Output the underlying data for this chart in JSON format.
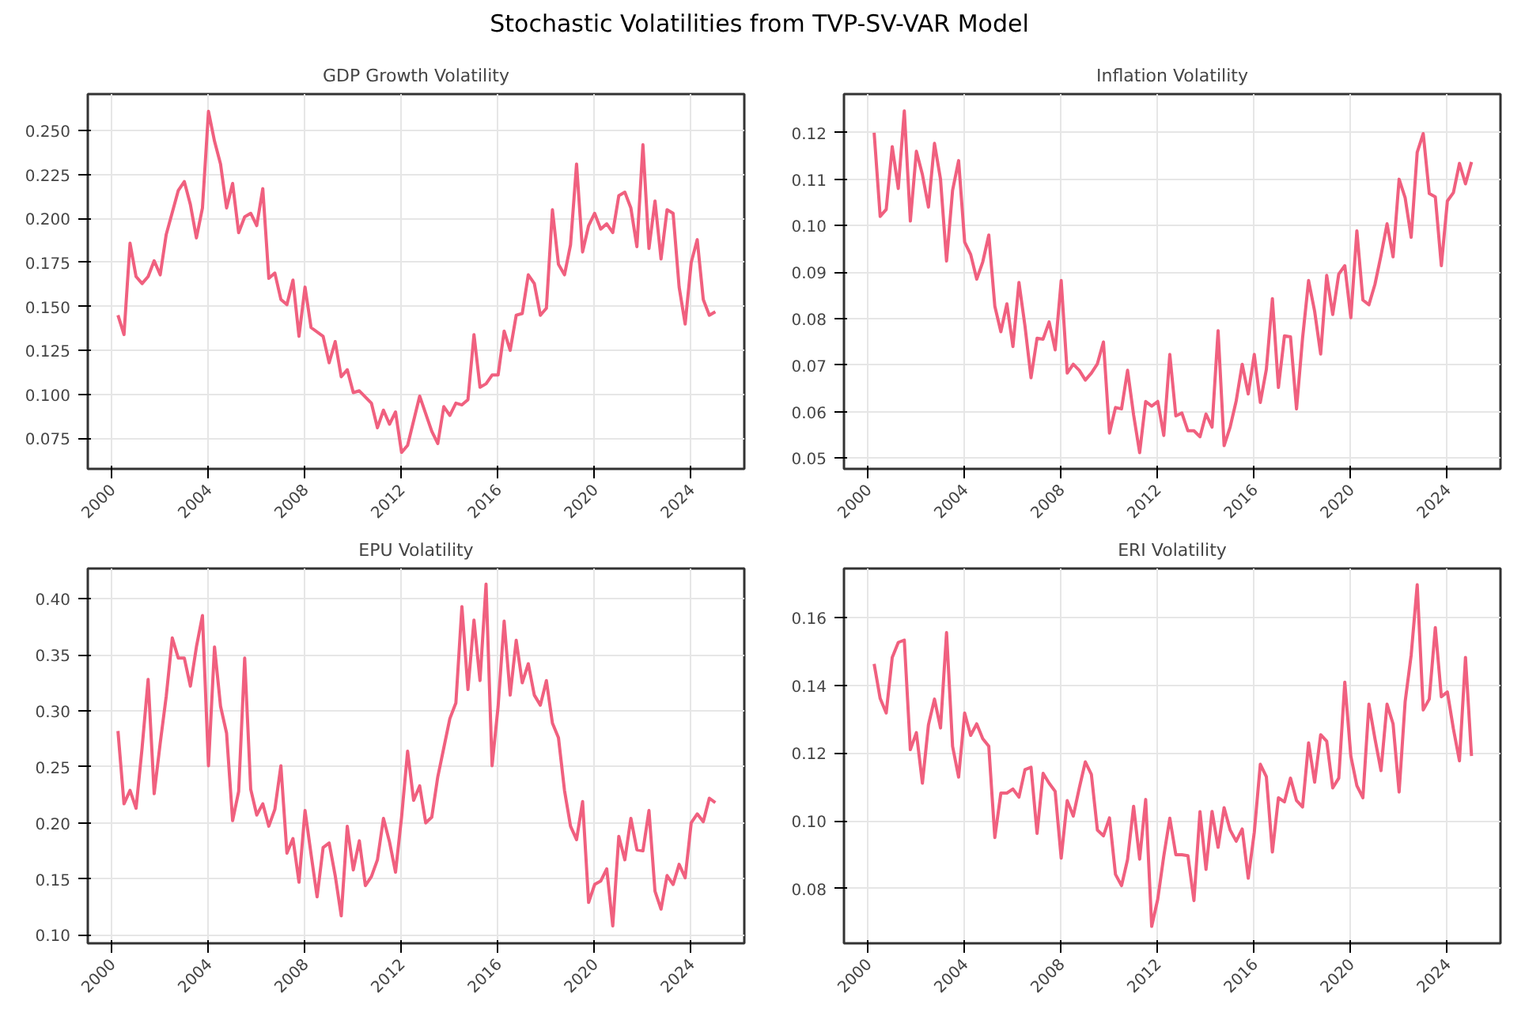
{
  "chart_data": [
    {
      "type": "line",
      "title": "GDP Growth Volatility",
      "annotations": [
        "Stochastic Volatilities from TVP-SV-VAR Model"
      ],
      "grid": true,
      "line_style": "solid",
      "xlim": [
        1999.0,
        2026.2
      ],
      "xticks": [
        2000,
        2004,
        2008,
        2012,
        2016,
        2020,
        2024
      ],
      "ylim": [
        0.0576,
        0.2708
      ],
      "yticks": [
        {
          "value": 0.075,
          "label": "0.075"
        },
        {
          "value": 0.1,
          "label": "0.100"
        },
        {
          "value": 0.125,
          "label": "0.125"
        },
        {
          "value": 0.15,
          "label": "0.150"
        },
        {
          "value": 0.175,
          "label": "0.175"
        },
        {
          "value": 0.2,
          "label": "0.200"
        },
        {
          "value": 0.225,
          "label": "0.225"
        },
        {
          "value": 0.25,
          "label": "0.250"
        }
      ],
      "x": [
        2000.25,
        2000.5,
        2000.75,
        2001,
        2001.25,
        2001.5,
        2001.75,
        2002,
        2002.25,
        2002.75,
        2003,
        2003.25,
        2003.5,
        2003.75,
        2004,
        2004.25,
        2004.5,
        2004.75,
        2005,
        2005.25,
        2005.5,
        2005.75,
        2006,
        2006.25,
        2006.5,
        2006.75,
        2007,
        2007.25,
        2007.5,
        2007.75,
        2008,
        2008.25,
        2008.75,
        2009,
        2009.25,
        2009.5,
        2009.75,
        2010,
        2010.25,
        2010.75,
        2011,
        2011.25,
        2011.5,
        2011.75,
        2012,
        2012.25,
        2012.75,
        2013.25,
        2013.5,
        2013.75,
        2014,
        2014.25,
        2014.5,
        2014.75,
        2015,
        2015.25,
        2015.5,
        2015.75,
        2016,
        2016.25,
        2016.5,
        2016.75,
        2017,
        2017.25,
        2017.5,
        2017.75,
        2018,
        2018.25,
        2018.5,
        2018.75,
        2019,
        2019.25,
        2019.5,
        2019.75,
        2020,
        2020.25,
        2020.5,
        2020.75,
        2021,
        2021.25,
        2021.5,
        2021.75,
        2022,
        2022.25,
        2022.5,
        2022.75,
        2023,
        2023.25,
        2023.5,
        2023.75,
        2024,
        2024.25,
        2024.5,
        2024.75,
        2025
      ],
      "series": [
        {
          "color": "#f0607f",
          "values": [
            0.145,
            0.134,
            0.186,
            0.167,
            0.163,
            0.167,
            0.176,
            0.168,
            0.191,
            0.216,
            0.221,
            0.208,
            0.189,
            0.206,
            0.261,
            0.244,
            0.231,
            0.206,
            0.22,
            0.192,
            0.201,
            0.203,
            0.196,
            0.217,
            0.166,
            0.169,
            0.154,
            0.151,
            0.165,
            0.133,
            0.161,
            0.138,
            0.133,
            0.118,
            0.13,
            0.11,
            0.114,
            0.101,
            0.102,
            0.095,
            0.081,
            0.091,
            0.083,
            0.09,
            0.067,
            0.071,
            0.099,
            0.079,
            0.072,
            0.093,
            0.088,
            0.095,
            0.094,
            0.097,
            0.134,
            0.104,
            0.106,
            0.111,
            0.111,
            0.136,
            0.125,
            0.145,
            0.146,
            0.168,
            0.163,
            0.145,
            0.149,
            0.205,
            0.174,
            0.168,
            0.185,
            0.231,
            0.181,
            0.196,
            0.203,
            0.194,
            0.197,
            0.192,
            0.213,
            0.215,
            0.206,
            0.184,
            0.242,
            0.183,
            0.21,
            0.177,
            0.205,
            0.203,
            0.161,
            0.14,
            0.175,
            0.188,
            0.154,
            0.145,
            0.147
          ]
        }
      ]
    },
    {
      "type": "line",
      "title": "Inflation Volatility",
      "grid": true,
      "line_style": "solid",
      "xlim": [
        1999.0,
        2026.2
      ],
      "xticks": [
        2000,
        2004,
        2008,
        2012,
        2016,
        2020,
        2024
      ],
      "ylim": [
        0.0477,
        0.1283
      ],
      "yticks": [
        {
          "value": 0.05,
          "label": "0.05"
        },
        {
          "value": 0.06,
          "label": "0.06"
        },
        {
          "value": 0.07,
          "label": "0.07"
        },
        {
          "value": 0.08,
          "label": "0.08"
        },
        {
          "value": 0.09,
          "label": "0.09"
        },
        {
          "value": 0.1,
          "label": "0.10"
        },
        {
          "value": 0.11,
          "label": "0.11"
        },
        {
          "value": 0.12,
          "label": "0.12"
        }
      ],
      "x": [
        2000.25,
        2000.5,
        2000.75,
        2001,
        2001.25,
        2001.5,
        2001.75,
        2002,
        2002.25,
        2002.5,
        2002.75,
        2003,
        2003.25,
        2003.5,
        2003.75,
        2004,
        2004.25,
        2004.5,
        2004.75,
        2005,
        2005.25,
        2005.5,
        2005.75,
        2006,
        2006.25,
        2006.5,
        2006.75,
        2007,
        2007.25,
        2007.5,
        2007.75,
        2008,
        2008.25,
        2008.5,
        2008.75,
        2009,
        2009.25,
        2009.5,
        2009.75,
        2010,
        2010.25,
        2010.5,
        2010.75,
        2011,
        2011.25,
        2011.5,
        2011.75,
        2012,
        2012.25,
        2012.5,
        2012.75,
        2013,
        2013.25,
        2013.5,
        2013.75,
        2014,
        2014.25,
        2014.5,
        2014.75,
        2015,
        2015.25,
        2015.5,
        2015.75,
        2016,
        2016.25,
        2016.5,
        2016.75,
        2017,
        2017.25,
        2017.5,
        2017.75,
        2018,
        2018.25,
        2018.5,
        2018.75,
        2019,
        2019.25,
        2019.5,
        2019.75,
        2020,
        2020.25,
        2020.5,
        2020.75,
        2021,
        2021.25,
        2021.5,
        2021.75,
        2022,
        2022.25,
        2022.5,
        2022.75,
        2023,
        2023.25,
        2023.5,
        2023.75,
        2024,
        2024.25,
        2024.5,
        2024.75,
        2025
      ],
      "series": [
        {
          "color": "#f0607f",
          "values": [
            0.12,
            0.102,
            0.1035,
            0.117,
            0.108,
            0.1247,
            0.101,
            0.116,
            0.111,
            0.104,
            0.1177,
            0.11,
            0.0924,
            0.1076,
            0.114,
            0.0965,
            0.0938,
            0.0885,
            0.0922,
            0.098,
            0.0827,
            0.0772,
            0.0832,
            0.074,
            0.0878,
            0.0784,
            0.0673,
            0.0758,
            0.0756,
            0.0793,
            0.0733,
            0.0882,
            0.0683,
            0.0702,
            0.0689,
            0.0668,
            0.0683,
            0.0703,
            0.075,
            0.0554,
            0.0609,
            0.0606,
            0.0689,
            0.0593,
            0.0512,
            0.0622,
            0.0612,
            0.0622,
            0.0549,
            0.0723,
            0.0591,
            0.0597,
            0.0559,
            0.0559,
            0.0546,
            0.0595,
            0.0567,
            0.0774,
            0.0527,
            0.0567,
            0.0623,
            0.0702,
            0.0638,
            0.0723,
            0.062,
            0.0691,
            0.0843,
            0.0652,
            0.0763,
            0.0761,
            0.0606,
            0.0758,
            0.0882,
            0.0816,
            0.0724,
            0.0893,
            0.0809,
            0.0896,
            0.0914,
            0.0802,
            0.0989,
            0.084,
            0.083,
            0.0874,
            0.0936,
            0.1004,
            0.0933,
            0.11,
            0.106,
            0.0975,
            0.1158,
            0.1198,
            0.1069,
            0.1062,
            0.0914,
            0.1053,
            0.1071,
            0.1134,
            0.109,
            0.1137
          ]
        }
      ]
    },
    {
      "type": "line",
      "title": "EPU Volatility",
      "grid": true,
      "line_style": "solid",
      "xlim": [
        1999.0,
        2026.2
      ],
      "xticks": [
        2000,
        2004,
        2008,
        2012,
        2016,
        2020,
        2024
      ],
      "ylim": [
        0.0925,
        0.427
      ],
      "yticks": [
        {
          "value": 0.1,
          "label": "0.10"
        },
        {
          "value": 0.15,
          "label": "0.15"
        },
        {
          "value": 0.2,
          "label": "0.20"
        },
        {
          "value": 0.25,
          "label": "0.25"
        },
        {
          "value": 0.3,
          "label": "0.30"
        },
        {
          "value": 0.35,
          "label": "0.35"
        },
        {
          "value": 0.4,
          "label": "0.40"
        }
      ],
      "x": [
        2000.25,
        2000.5,
        2000.75,
        2001,
        2001.25,
        2001.5,
        2001.75,
        2002,
        2002.25,
        2002.5,
        2002.75,
        2003,
        2003.25,
        2003.5,
        2003.75,
        2004,
        2004.25,
        2004.5,
        2004.75,
        2005,
        2005.25,
        2005.5,
        2005.75,
        2006,
        2006.25,
        2006.5,
        2006.75,
        2007,
        2007.25,
        2007.5,
        2007.75,
        2008,
        2008.25,
        2008.5,
        2008.75,
        2009,
        2009.25,
        2009.5,
        2009.75,
        2010,
        2010.25,
        2010.5,
        2010.75,
        2011,
        2011.25,
        2011.5,
        2011.75,
        2012,
        2012.25,
        2012.5,
        2012.75,
        2013,
        2013.25,
        2013.5,
        2013.75,
        2014,
        2014.25,
        2014.5,
        2014.75,
        2015,
        2015.25,
        2015.5,
        2015.75,
        2016,
        2016.25,
        2016.5,
        2016.75,
        2017,
        2017.25,
        2017.5,
        2017.75,
        2018,
        2018.25,
        2018.5,
        2018.75,
        2019,
        2019.25,
        2019.5,
        2019.75,
        2020,
        2020.25,
        2020.5,
        2020.75,
        2021,
        2021.25,
        2021.5,
        2021.75,
        2022,
        2022.25,
        2022.5,
        2022.75,
        2023,
        2023.25,
        2023.5,
        2023.75,
        2024,
        2024.25,
        2024.5,
        2024.75,
        2025
      ],
      "series": [
        {
          "color": "#f0607f",
          "values": [
            0.282,
            0.217,
            0.229,
            0.213,
            0.267,
            0.328,
            0.226,
            0.271,
            0.313,
            0.365,
            0.347,
            0.347,
            0.322,
            0.357,
            0.385,
            0.251,
            0.357,
            0.304,
            0.28,
            0.202,
            0.228,
            0.347,
            0.23,
            0.207,
            0.217,
            0.197,
            0.212,
            0.251,
            0.173,
            0.186,
            0.147,
            0.211,
            0.172,
            0.134,
            0.178,
            0.182,
            0.153,
            0.117,
            0.197,
            0.158,
            0.184,
            0.144,
            0.152,
            0.167,
            0.204,
            0.183,
            0.156,
            0.205,
            0.264,
            0.22,
            0.233,
            0.2,
            0.205,
            0.241,
            0.267,
            0.293,
            0.307,
            0.393,
            0.319,
            0.381,
            0.327,
            0.413,
            0.251,
            0.304,
            0.38,
            0.314,
            0.363,
            0.325,
            0.342,
            0.314,
            0.305,
            0.327,
            0.289,
            0.276,
            0.229,
            0.197,
            0.185,
            0.219,
            0.129,
            0.145,
            0.148,
            0.159,
            0.108,
            0.188,
            0.167,
            0.204,
            0.176,
            0.175,
            0.211,
            0.139,
            0.123,
            0.153,
            0.145,
            0.163,
            0.151,
            0.2,
            0.208,
            0.201,
            0.222,
            0.218
          ]
        }
      ]
    },
    {
      "type": "line",
      "title": "ERI Volatility",
      "grid": true,
      "line_style": "solid",
      "xlim": [
        1999.0,
        2026.2
      ],
      "xticks": [
        2000,
        2004,
        2008,
        2012,
        2016,
        2020,
        2024
      ],
      "ylim": [
        0.0639,
        0.1744
      ],
      "yticks": [
        {
          "value": 0.08,
          "label": "0.08"
        },
        {
          "value": 0.1,
          "label": "0.10"
        },
        {
          "value": 0.12,
          "label": "0.12"
        },
        {
          "value": 0.14,
          "label": "0.14"
        },
        {
          "value": 0.16,
          "label": "0.16"
        }
      ],
      "x": [
        2000.25,
        2000.5,
        2000.75,
        2001,
        2001.25,
        2001.5,
        2001.75,
        2002,
        2002.25,
        2002.5,
        2002.75,
        2003,
        2003.25,
        2003.5,
        2003.75,
        2004,
        2004.25,
        2004.5,
        2004.75,
        2005,
        2005.25,
        2005.5,
        2005.75,
        2006,
        2006.25,
        2006.5,
        2006.75,
        2007,
        2007.25,
        2007.5,
        2007.75,
        2008,
        2008.25,
        2008.5,
        2008.75,
        2009,
        2009.25,
        2009.5,
        2009.75,
        2010,
        2010.25,
        2010.5,
        2010.75,
        2011,
        2011.25,
        2011.5,
        2011.75,
        2012,
        2012.25,
        2012.5,
        2012.75,
        2013,
        2013.25,
        2013.5,
        2013.75,
        2014,
        2014.25,
        2014.5,
        2014.75,
        2015,
        2015.25,
        2015.5,
        2015.75,
        2016,
        2016.25,
        2016.5,
        2016.75,
        2017,
        2017.25,
        2017.5,
        2017.75,
        2018,
        2018.25,
        2018.5,
        2018.75,
        2019,
        2019.25,
        2019.5,
        2019.75,
        2020,
        2020.25,
        2020.5,
        2020.75,
        2021,
        2021.25,
        2021.5,
        2021.75,
        2022,
        2022.25,
        2022.5,
        2022.75,
        2023,
        2023.25,
        2023.5,
        2023.75,
        2024,
        2024.25,
        2024.5,
        2024.75,
        2025
      ],
      "series": [
        {
          "color": "#f0607f",
          "values": [
            0.1463,
            0.1361,
            0.1318,
            0.1482,
            0.1526,
            0.1533,
            0.121,
            0.126,
            0.1111,
            0.1283,
            0.1359,
            0.1274,
            0.1555,
            0.122,
            0.1129,
            0.1318,
            0.1252,
            0.1286,
            0.1242,
            0.122,
            0.0951,
            0.1082,
            0.1082,
            0.1094,
            0.107,
            0.1151,
            0.1158,
            0.0963,
            0.114,
            0.1111,
            0.1087,
            0.089,
            0.106,
            0.1014,
            0.1097,
            0.1174,
            0.1137,
            0.0973,
            0.0956,
            0.1009,
            0.0842,
            0.0809,
            0.0886,
            0.1043,
            0.0887,
            0.1063,
            0.0689,
            0.0769,
            0.0896,
            0.1008,
            0.09,
            0.09,
            0.0897,
            0.0765,
            0.1027,
            0.0857,
            0.1028,
            0.0922,
            0.1039,
            0.0973,
            0.094,
            0.0976,
            0.0831,
            0.0966,
            0.1167,
            0.113,
            0.0908,
            0.1068,
            0.1056,
            0.1126,
            0.106,
            0.1041,
            0.123,
            0.1114,
            0.1254,
            0.1235,
            0.1097,
            0.1126,
            0.1409,
            0.1191,
            0.1104,
            0.1068,
            0.1344,
            0.1242,
            0.1148,
            0.1344,
            0.1286,
            0.1085,
            0.1351,
            0.1489,
            0.1696,
            0.1327,
            0.1359,
            0.157,
            0.1366,
            0.138,
            0.1271,
            0.1177,
            0.1482,
            0.1191
          ]
        }
      ]
    }
  ]
}
